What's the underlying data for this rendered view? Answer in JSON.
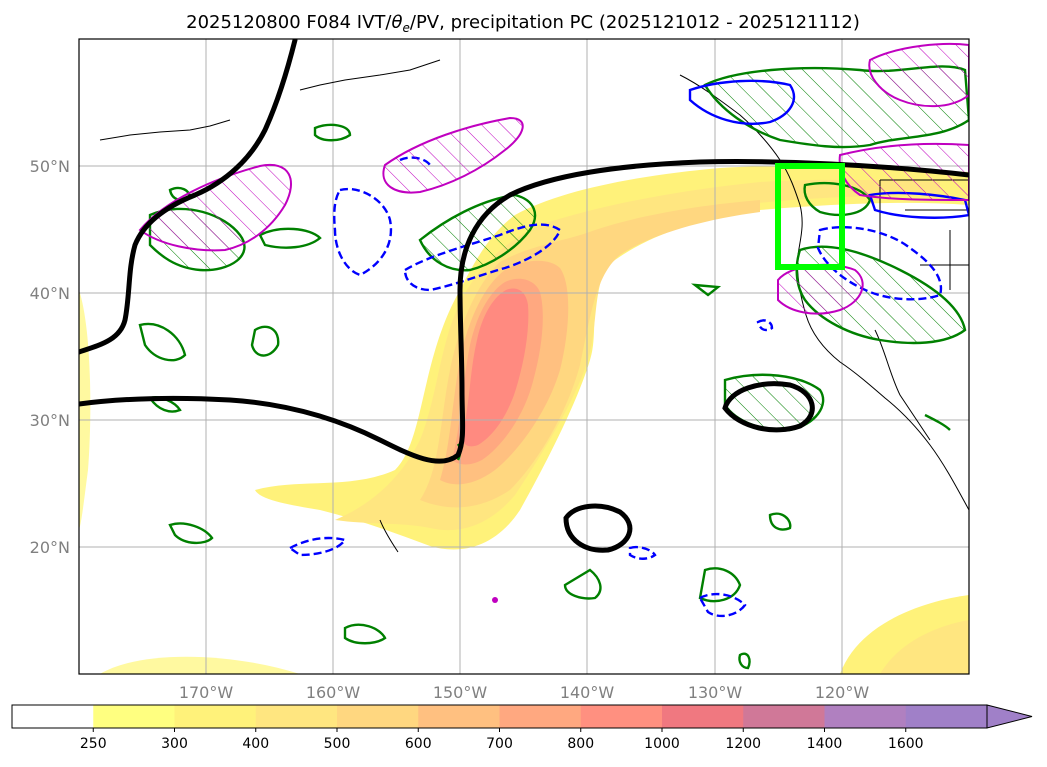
{
  "title": {
    "prefix": "2025120800 F084 IVT/",
    "theta": "θ",
    "theta_sub": "e",
    "suffix": "/PV, precipitation PC (2025121012 - 2025121112)"
  },
  "map": {
    "projection": "equirectangular",
    "lon_range": [
      -180,
      -110
    ],
    "lat_range": [
      10,
      60
    ],
    "gridlines": true,
    "lat_labels": [
      {
        "lat": 50,
        "label": "50°N"
      },
      {
        "lat": 40,
        "label": "40°N"
      },
      {
        "lat": 30,
        "label": "30°N"
      },
      {
        "lat": 20,
        "label": "20°N"
      }
    ],
    "lon_labels": [
      {
        "lon": -170,
        "label": "170°W"
      },
      {
        "lon": -160,
        "label": "160°W"
      },
      {
        "lon": -150,
        "label": "150°W"
      },
      {
        "lon": -140,
        "label": "140°W"
      },
      {
        "lon": -130,
        "label": "130°W"
      },
      {
        "lon": -120,
        "label": "120°W"
      }
    ],
    "highlight_box": {
      "lon": [
        -125,
        -120
      ],
      "lat": [
        42,
        50
      ],
      "color": "#00ff00"
    }
  },
  "colorbar": {
    "ticks": [
      "250",
      "300",
      "400",
      "500",
      "600",
      "700",
      "800",
      "1000",
      "1200",
      "1400",
      "1600"
    ],
    "colors": [
      "#ffffff",
      "#ffff80",
      "#fff27a",
      "#ffe680",
      "#ffd780",
      "#ffc080",
      "#ffa880",
      "#ff9080",
      "#f07880",
      "#d07898",
      "#b080c0",
      "#a080c8"
    ],
    "extend": "max"
  },
  "colors": {
    "ivt_core": "#ff8a80",
    "pv_line": "#000000",
    "theta_pos": "#008000",
    "theta_neg": "#0000ff",
    "hatch_magenta": "#c000c0"
  }
}
